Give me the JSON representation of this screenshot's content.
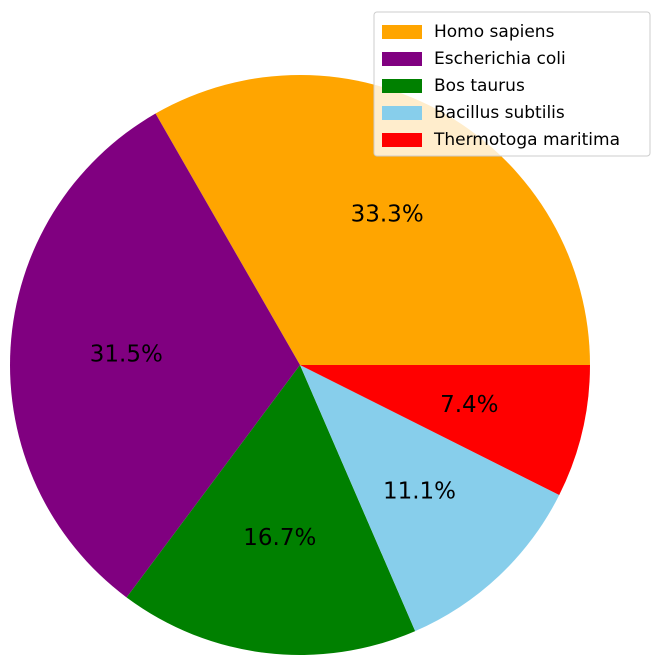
{
  "chart_data": {
    "type": "pie",
    "start_angle_deg": 0,
    "direction": "counterclockwise",
    "legend_position": "top-right",
    "slices": [
      {
        "label": "Homo sapiens",
        "value": 33.3,
        "pct_label": "33.3%",
        "color": "#FFA500"
      },
      {
        "label": "Escherichia coli",
        "value": 31.5,
        "pct_label": "31.5%",
        "color": "#800080"
      },
      {
        "label": "Bos taurus",
        "value": 16.7,
        "pct_label": "16.7%",
        "color": "#008000"
      },
      {
        "label": "Bacillus subtilis",
        "value": 11.1,
        "pct_label": "11.1%",
        "color": "#87CEEB"
      },
      {
        "label": "Thermotoga maritima",
        "value": 7.4,
        "pct_label": "7.4%",
        "color": "#FF0000"
      }
    ]
  }
}
